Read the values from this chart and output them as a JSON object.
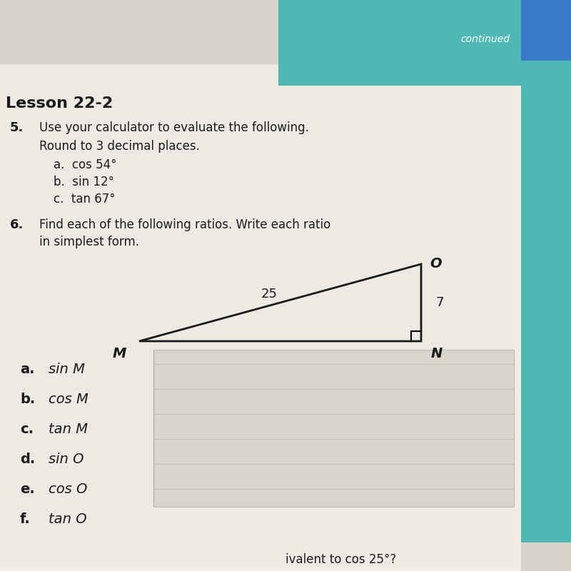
{
  "bg_color": "#d8d4cc",
  "page_bg": "#f0ede6",
  "page_bg2": "#e8e5de",
  "lesson_title": "Lesson 22-2",
  "q5_number": "5.",
  "q5_text_line1": "Use your calculator to evaluate the following.",
  "q5_text_line2": "Round to 3 decimal places.",
  "q5_a": "a.  cos 54°",
  "q5_b": "b.  sin 12°",
  "q5_c": "c.  tan 67°",
  "q6_number": "6.",
  "q6_text_line1": "Find each of the following ratios. Write each ratio",
  "q6_text_line2": "in simplest form.",
  "label_M": "M",
  "label_N": "N",
  "label_O": "O",
  "label_25": "25",
  "label_7": "7",
  "bottom_text": "ivalent to cos 25°?",
  "continued_text": "continued",
  "teal_color": "#4db8b4",
  "teal_dark": "#3aa8a4",
  "answer_items": [
    [
      "a.",
      "sin ",
      "M"
    ],
    [
      "b.",
      "cos ",
      "M"
    ],
    [
      "c.",
      "tan ",
      "M"
    ],
    [
      "d.",
      "sin ",
      "O"
    ],
    [
      "e.",
      "cos ",
      "O"
    ],
    [
      "f.",
      "tan ",
      "O"
    ]
  ]
}
